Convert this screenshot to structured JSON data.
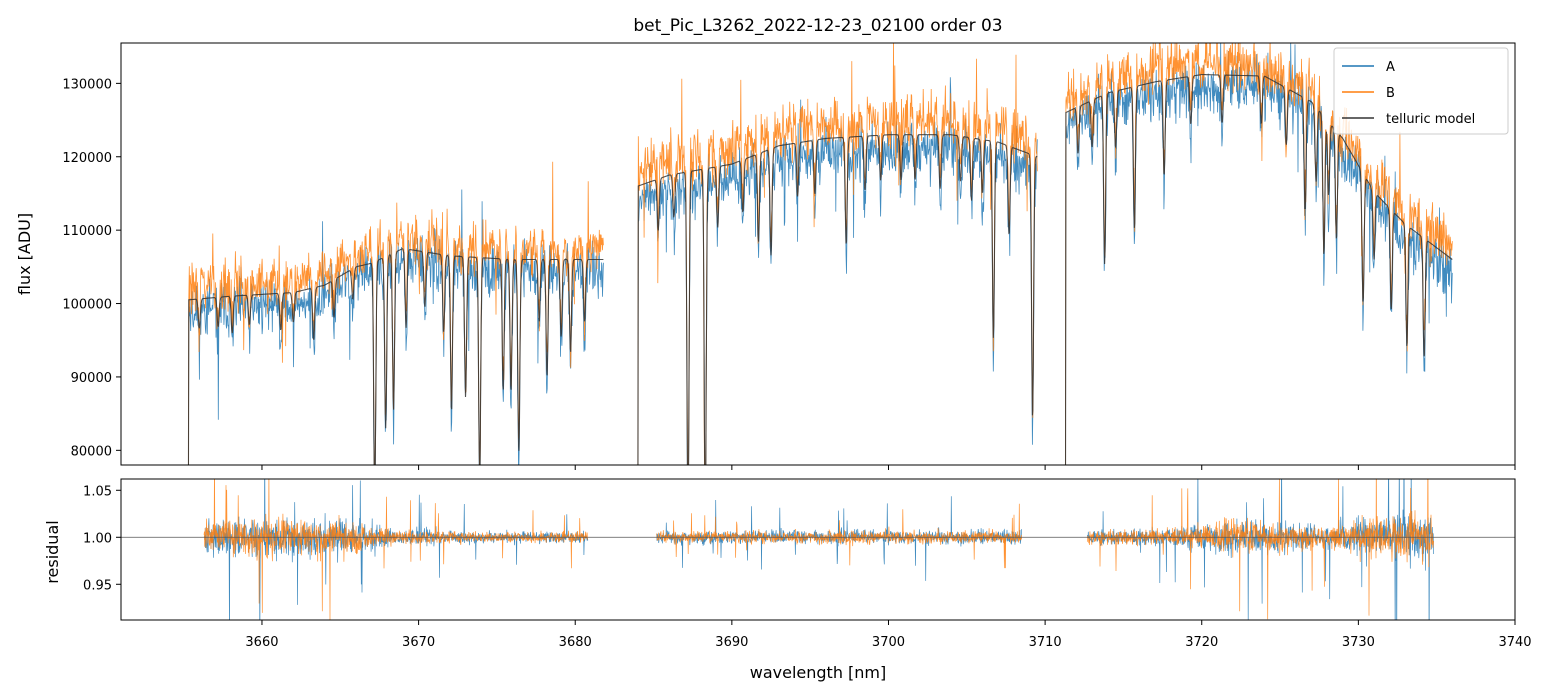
{
  "chart_data": [
    {
      "panel": "spectrum",
      "type": "line",
      "title": "bet_Pic_L3262_2022-12-23_02100  order 03",
      "xlabel": "",
      "ylabel": "flux [ADU]",
      "xlim": [
        3651,
        3740
      ],
      "ylim": [
        78000,
        135500
      ],
      "yticks": [
        80000,
        90000,
        100000,
        110000,
        120000,
        130000
      ],
      "xticks": [
        3660,
        3670,
        3680,
        3690,
        3700,
        3710,
        3720,
        3730,
        3740
      ],
      "legend_position": "top-right",
      "series": [
        {
          "name": "A",
          "color": "#1f77b4",
          "segments": [
            {
              "x0": 3655.3,
              "x1": 3681.8,
              "continuum": [
                [
                  3655.3,
                  99000
                ],
                [
                  3658,
                  99500
                ],
                [
                  3662,
                  100000
                ],
                [
                  3664,
                  101000
                ],
                [
                  3666,
                  103500
                ],
                [
                  3667,
                  104000
                ],
                [
                  3669,
                  106000
                ],
                [
                  3672,
                  105000
                ],
                [
                  3676,
                  104500
                ],
                [
                  3681.8,
                  104500
                ]
              ]
            },
            {
              "x0": 3684.0,
              "x1": 3709.5,
              "continuum": [
                [
                  3684,
                  114000
                ],
                [
                  3686,
                  115500
                ],
                [
                  3690,
                  117000
                ],
                [
                  3693,
                  119500
                ],
                [
                  3696,
                  120500
                ],
                [
                  3700,
                  121000
                ],
                [
                  3704,
                  121000
                ],
                [
                  3707,
                  120000
                ],
                [
                  3709.5,
                  118000
                ]
              ]
            },
            {
              "x0": 3711.3,
              "x1": 3736.0,
              "continuum": [
                [
                  3711.3,
                  124000
                ],
                [
                  3714,
                  127000
                ],
                [
                  3717,
                  128500
                ],
                [
                  3720,
                  129500
                ],
                [
                  3724,
                  129500
                ],
                [
                  3727,
                  126000
                ],
                [
                  3729,
                  121000
                ],
                [
                  3731,
                  113500
                ],
                [
                  3733,
                  109000
                ],
                [
                  3736,
                  104000
                ]
              ]
            }
          ]
        },
        {
          "name": "B",
          "color": "#ff7f0e",
          "segments": [
            {
              "x0": 3655.3,
              "x1": 3681.8,
              "continuum": [
                [
                  3655.3,
                  102000
                ],
                [
                  3658,
                  102500
                ],
                [
                  3662,
                  103000
                ],
                [
                  3664,
                  104000
                ],
                [
                  3666,
                  106500
                ],
                [
                  3667,
                  107000
                ],
                [
                  3669,
                  109000
                ],
                [
                  3672,
                  108000
                ],
                [
                  3676,
                  107500
                ],
                [
                  3681.8,
                  107500
                ]
              ]
            },
            {
              "x0": 3684.0,
              "x1": 3709.5,
              "continuum": [
                [
                  3684,
                  118000
                ],
                [
                  3686,
                  119500
                ],
                [
                  3690,
                  121000
                ],
                [
                  3693,
                  123500
                ],
                [
                  3696,
                  124500
                ],
                [
                  3700,
                  125000
                ],
                [
                  3704,
                  125000
                ],
                [
                  3707,
                  124000
                ],
                [
                  3709.5,
                  122500
                ]
              ]
            },
            {
              "x0": 3711.3,
              "x1": 3736.0,
              "continuum": [
                [
                  3711.3,
                  127500
                ],
                [
                  3714,
                  130500
                ],
                [
                  3717,
                  132000
                ],
                [
                  3720,
                  133000
                ],
                [
                  3724,
                  132500
                ],
                [
                  3727,
                  129000
                ],
                [
                  3729,
                  124000
                ],
                [
                  3731,
                  117000
                ],
                [
                  3733,
                  112500
                ],
                [
                  3736,
                  108000
                ]
              ]
            }
          ]
        },
        {
          "name": "telluric model",
          "color": "#333333",
          "segments": [
            {
              "x0": 3655.3,
              "x1": 3681.8,
              "continuum": [
                [
                  3655.3,
                  100500
                ],
                [
                  3658,
                  101000
                ],
                [
                  3662,
                  101500
                ],
                [
                  3664,
                  102500
                ],
                [
                  3666,
                  105000
                ],
                [
                  3667,
                  105500
                ],
                [
                  3669,
                  107500
                ],
                [
                  3672,
                  106500
                ],
                [
                  3676,
                  106000
                ],
                [
                  3681.8,
                  106000
                ]
              ]
            },
            {
              "x0": 3684.0,
              "x1": 3709.5,
              "continuum": [
                [
                  3684,
                  116000
                ],
                [
                  3686,
                  117500
                ],
                [
                  3690,
                  119000
                ],
                [
                  3693,
                  121500
                ],
                [
                  3696,
                  122500
                ],
                [
                  3700,
                  123000
                ],
                [
                  3704,
                  123000
                ],
                [
                  3707,
                  122000
                ],
                [
                  3709.5,
                  120000
                ]
              ]
            },
            {
              "x0": 3711.3,
              "x1": 3736.0,
              "continuum": [
                [
                  3711.3,
                  126000
                ],
                [
                  3714,
                  128700
                ],
                [
                  3717,
                  130200
                ],
                [
                  3720,
                  131200
                ],
                [
                  3724,
                  131000
                ],
                [
                  3727,
                  127500
                ],
                [
                  3729,
                  122500
                ],
                [
                  3731,
                  115200
                ],
                [
                  3733,
                  110800
                ],
                [
                  3736,
                  106000
                ]
              ]
            }
          ]
        }
      ],
      "absorption_lines": [
        {
          "x": 3656.0,
          "depth": 0.04
        },
        {
          "x": 3657.2,
          "depth": 0.04
        },
        {
          "x": 3658.1,
          "depth": 0.05
        },
        {
          "x": 3659.2,
          "depth": 0.04
        },
        {
          "x": 3661.2,
          "depth": 0.05
        },
        {
          "x": 3662.0,
          "depth": 0.04
        },
        {
          "x": 3663.3,
          "depth": 0.07
        },
        {
          "x": 3664.6,
          "depth": 0.05
        },
        {
          "x": 3665.8,
          "depth": 0.04
        },
        {
          "x": 3667.2,
          "depth": 0.3
        },
        {
          "x": 3667.9,
          "depth": 0.22
        },
        {
          "x": 3668.4,
          "depth": 0.2
        },
        {
          "x": 3669.2,
          "depth": 0.1
        },
        {
          "x": 3670.4,
          "depth": 0.07
        },
        {
          "x": 3671.6,
          "depth": 0.1
        },
        {
          "x": 3672.1,
          "depth": 0.2
        },
        {
          "x": 3673.0,
          "depth": 0.18
        },
        {
          "x": 3673.9,
          "depth": 0.28
        },
        {
          "x": 3675.4,
          "depth": 0.17
        },
        {
          "x": 3675.9,
          "depth": 0.17
        },
        {
          "x": 3676.4,
          "depth": 0.25
        },
        {
          "x": 3677.7,
          "depth": 0.08
        },
        {
          "x": 3678.2,
          "depth": 0.15
        },
        {
          "x": 3679.1,
          "depth": 0.1
        },
        {
          "x": 3679.7,
          "depth": 0.12
        },
        {
          "x": 3680.6,
          "depth": 0.08
        },
        {
          "x": 3685.3,
          "depth": 0.06
        },
        {
          "x": 3686.3,
          "depth": 0.05
        },
        {
          "x": 3687.2,
          "depth": 0.4
        },
        {
          "x": 3688.3,
          "depth": 0.4
        },
        {
          "x": 3689.1,
          "depth": 0.07
        },
        {
          "x": 3690.7,
          "depth": 0.06
        },
        {
          "x": 3691.7,
          "depth": 0.1
        },
        {
          "x": 3692.5,
          "depth": 0.12
        },
        {
          "x": 3694.2,
          "depth": 0.06
        },
        {
          "x": 3695.3,
          "depth": 0.06
        },
        {
          "x": 3697.3,
          "depth": 0.12
        },
        {
          "x": 3698.5,
          "depth": 0.06
        },
        {
          "x": 3699.5,
          "depth": 0.05
        },
        {
          "x": 3700.8,
          "depth": 0.05
        },
        {
          "x": 3701.7,
          "depth": 0.05
        },
        {
          "x": 3703.3,
          "depth": 0.06
        },
        {
          "x": 3704.6,
          "depth": 0.05
        },
        {
          "x": 3705.3,
          "depth": 0.07
        },
        {
          "x": 3706.0,
          "depth": 0.06
        },
        {
          "x": 3706.7,
          "depth": 0.22
        },
        {
          "x": 3707.7,
          "depth": 0.1
        },
        {
          "x": 3709.2,
          "depth": 0.3
        },
        {
          "x": 3712.1,
          "depth": 0.05
        },
        {
          "x": 3713.0,
          "depth": 0.05
        },
        {
          "x": 3713.8,
          "depth": 0.18
        },
        {
          "x": 3714.5,
          "depth": 0.06
        },
        {
          "x": 3715.7,
          "depth": 0.15
        },
        {
          "x": 3717.6,
          "depth": 0.1
        },
        {
          "x": 3719.3,
          "depth": 0.05
        },
        {
          "x": 3721.3,
          "depth": 0.05
        },
        {
          "x": 3723.8,
          "depth": 0.05
        },
        {
          "x": 3725.4,
          "depth": 0.06
        },
        {
          "x": 3726.6,
          "depth": 0.12
        },
        {
          "x": 3727.3,
          "depth": 0.08
        },
        {
          "x": 3727.8,
          "depth": 0.15
        },
        {
          "x": 3728.1,
          "depth": 0.08
        },
        {
          "x": 3728.6,
          "depth": 0.12
        },
        {
          "x": 3730.3,
          "depth": 0.15
        },
        {
          "x": 3731.0,
          "depth": 0.08
        },
        {
          "x": 3732.1,
          "depth": 0.12
        },
        {
          "x": 3733.1,
          "depth": 0.15
        },
        {
          "x": 3734.2,
          "depth": 0.15
        }
      ]
    },
    {
      "panel": "residual",
      "type": "line",
      "title": "",
      "xlabel": "wavelength [nm]",
      "ylabel": "residual",
      "xlim": [
        3651,
        3740
      ],
      "ylim": [
        0.912,
        1.062
      ],
      "yticks": [
        0.95,
        1.0,
        1.05
      ],
      "ytick_labels": [
        "0.95",
        "1.00",
        "1.05"
      ],
      "xticks": [
        3660,
        3670,
        3680,
        3690,
        3700,
        3710,
        3720,
        3730,
        3740
      ],
      "reference_line": 1.0,
      "series": [
        {
          "name": "A",
          "color": "#1f77b4",
          "segments": [
            [
              3656.3,
              3680.8
            ],
            [
              3685.2,
              3708.5
            ],
            [
              3712.7,
              3734.8
            ]
          ]
        },
        {
          "name": "B",
          "color": "#ff7f0e",
          "segments": [
            [
              3656.3,
              3680.8
            ],
            [
              3685.2,
              3708.5
            ],
            [
              3712.7,
              3734.8
            ]
          ]
        }
      ],
      "noise_envelope": [
        [
          3656.3,
          0.03
        ],
        [
          3660,
          0.035
        ],
        [
          3666,
          0.03
        ],
        [
          3668,
          0.015
        ],
        [
          3675,
          0.01
        ],
        [
          3680.8,
          0.01
        ],
        [
          3685.2,
          0.01
        ],
        [
          3700,
          0.012
        ],
        [
          3708.5,
          0.012
        ],
        [
          3712.7,
          0.012
        ],
        [
          3718,
          0.015
        ],
        [
          3722,
          0.03
        ],
        [
          3726,
          0.025
        ],
        [
          3728,
          0.02
        ],
        [
          3730,
          0.03
        ],
        [
          3732,
          0.04
        ],
        [
          3734.8,
          0.045
        ]
      ]
    }
  ]
}
